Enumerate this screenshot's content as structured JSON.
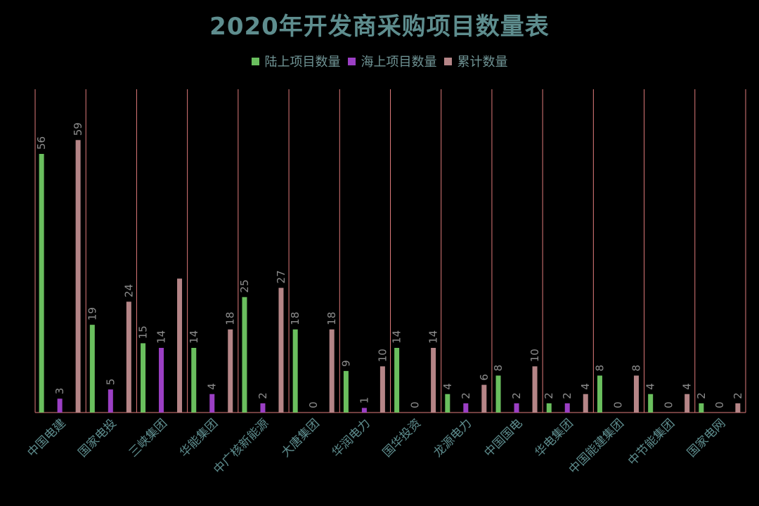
{
  "chart_data": {
    "type": "bar",
    "title": "2020年开发商采购项目数量表",
    "categories": [
      "中国电建",
      "国家电投",
      "三峡集团",
      "华能集团",
      "中广核新能源",
      "大唐集团",
      "华润电力",
      "国华投资",
      "龙源电力",
      "中国国电",
      "华电集团",
      "中国能建集团",
      "中节能集团",
      "国家电网"
    ],
    "series": [
      {
        "name": "陆上项目数量",
        "color": "#6abf5e",
        "values": [
          56,
          19,
          15,
          14,
          25,
          18,
          9,
          14,
          4,
          8,
          2,
          8,
          4,
          2
        ]
      },
      {
        "name": "海上项目数量",
        "color": "#9b3fc4",
        "values": [
          3,
          5,
          14,
          4,
          2,
          0,
          1,
          0,
          2,
          2,
          2,
          0,
          0,
          0
        ]
      },
      {
        "name": "累计数量",
        "color": "#b58587",
        "values": [
          59,
          24,
          29,
          18,
          27,
          18,
          10,
          14,
          6,
          10,
          4,
          8,
          4,
          2
        ]
      }
    ],
    "data_labels": [
      [
        "56",
        "3",
        "59"
      ],
      [
        "19",
        "5",
        "24"
      ],
      [
        "15",
        "14",
        ""
      ],
      [
        "14",
        "4",
        "18"
      ],
      [
        "25",
        "2",
        "27"
      ],
      [
        "18",
        "0",
        "18"
      ],
      [
        "9",
        "1",
        "10"
      ],
      [
        "14",
        "0",
        "14"
      ],
      [
        "4",
        "2",
        "6"
      ],
      [
        "8",
        "2",
        "10"
      ],
      [
        "2",
        "2",
        "4"
      ],
      [
        "8",
        "0",
        "8"
      ],
      [
        "4",
        "0",
        "4"
      ],
      [
        "2",
        "0",
        "2"
      ]
    ],
    "ylim": [
      0,
      70
    ],
    "grid": "vertical-category-separators",
    "legend_position": "top",
    "label_color": "#8c8c8c",
    "axis_label_color": "#5e8d8e",
    "separator_color": "#e07b7b"
  }
}
